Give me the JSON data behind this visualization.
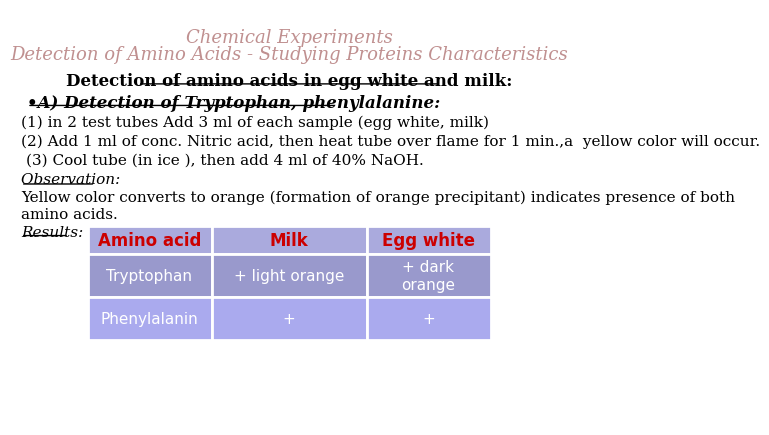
{
  "title1": "Chemical Experiments",
  "title2": "Detection of Amino Acids - Studying Proteins Characteristics",
  "title1_color": "#c09090",
  "title2_color": "#c09090",
  "section_title": "Detection of amino acids in egg white and milk:",
  "bullet_header": "•A) Detection of Tryptophan, phenylalanine:",
  "step1": "(1) in 2 test tubes Add 3 ml of each sample (egg white, milk)",
  "step2": "(2) Add 1 ml of conc. Nitric acid, then heat tube over flame for 1 min.,a  yellow color will occur.",
  "step3": "(3) Cool tube (in ice ), then add 4 ml of 40% NaOH.",
  "obs_label": "Observation: ",
  "obs_text1": "Yellow color converts to orange (formation of orange precipitant) indicates presence of both",
  "obs_text2": "amino acids.",
  "results_label": "Results:",
  "table_headers": [
    "Amino acid",
    "Milk",
    "Egg white"
  ],
  "table_row1": [
    "Tryptophan",
    "+ light orange",
    "+ dark\norange"
  ],
  "table_row2": [
    "Phenylalanin",
    "+",
    "+"
  ],
  "table_header_bg": "#aaaadd",
  "table_row1_bg": "#9999cc",
  "table_row2_bg": "#aaaaee",
  "table_text_color": "#ffffff",
  "table_header_text_color": "#cc0000",
  "bg_color": "#ffffff"
}
